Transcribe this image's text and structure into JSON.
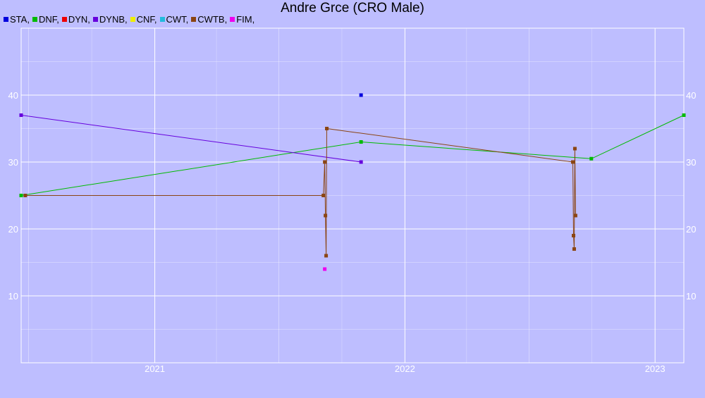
{
  "chart_data": {
    "type": "line",
    "title": "Andre Grce (CRO Male)",
    "xlabel": "",
    "ylabel": "",
    "xlim": [
      "2020-06-20",
      "2023-02-12"
    ],
    "ylim": [
      0,
      50
    ],
    "grid": true,
    "legend_position": "top-left",
    "x_ticks": [
      {
        "date": "2021-01-01",
        "label": "2021"
      },
      {
        "date": "2022-01-01",
        "label": "2022"
      },
      {
        "date": "2023-01-01",
        "label": "2023"
      }
    ],
    "y_ticks": [
      10,
      20,
      30,
      40
    ],
    "series": [
      {
        "name": "STA",
        "color": "#0000dd",
        "points": [
          [
            "2021-10-29",
            40
          ]
        ]
      },
      {
        "name": "DNF",
        "color": "#00bb00",
        "points": [
          [
            "2020-06-20",
            25
          ],
          [
            "2021-10-29",
            33
          ],
          [
            "2022-09-30",
            30.5
          ],
          [
            "2023-02-12",
            37
          ]
        ]
      },
      {
        "name": "DYN",
        "color": "#ee0000",
        "points": []
      },
      {
        "name": "DYNB",
        "color": "#6600dd",
        "points": [
          [
            "2020-06-20",
            37
          ],
          [
            "2021-10-29",
            30
          ]
        ]
      },
      {
        "name": "CNF",
        "color": "#eeee00",
        "points": []
      },
      {
        "name": "CWT",
        "color": "#22bbdd",
        "points": []
      },
      {
        "name": "CWTB",
        "color": "#8b4513",
        "points": [
          [
            "2020-06-26",
            25
          ],
          [
            "2021-09-04",
            25
          ],
          [
            "2021-09-06",
            30
          ],
          [
            "2021-09-07",
            22
          ],
          [
            "2021-09-08",
            16
          ],
          [
            "2021-09-09",
            35
          ],
          [
            "2022-09-03",
            30
          ],
          [
            "2022-09-04",
            19
          ],
          [
            "2022-09-05",
            17
          ],
          [
            "2022-09-06",
            32
          ],
          [
            "2022-09-07",
            22
          ]
        ]
      },
      {
        "name": "FIM",
        "color": "#ee00ee",
        "points": [
          [
            "2021-09-06",
            14
          ]
        ]
      }
    ]
  }
}
